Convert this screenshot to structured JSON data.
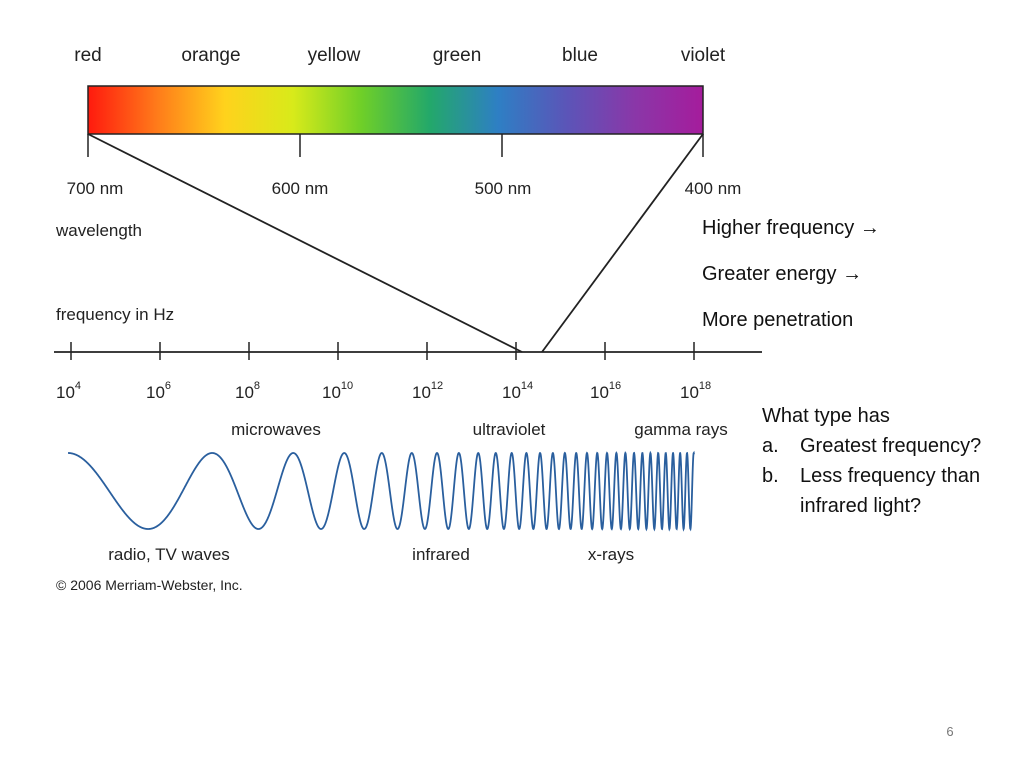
{
  "spectrum": {
    "color_labels": [
      "red",
      "orange",
      "yellow",
      "green",
      "blue",
      "violet"
    ],
    "gradient_colors": [
      "#ff1a0e",
      "#ff7a1a",
      "#ffd21c",
      "#d8ea1a",
      "#6fcf28",
      "#23a86a",
      "#2e7fc4",
      "#5b55b8",
      "#8a37a8",
      "#a51c9c"
    ],
    "nm_labels": [
      "700 nm",
      "600 nm",
      "500 nm",
      "400 nm"
    ],
    "wavelength_label": "wavelength"
  },
  "frequency_axis": {
    "title": "frequency in Hz",
    "tick_base": "10",
    "tick_exponents": [
      "4",
      "6",
      "8",
      "10",
      "12",
      "14",
      "16",
      "18"
    ]
  },
  "bands": {
    "top": [
      "microwaves",
      "ultraviolet",
      "gamma rays"
    ],
    "bottom": [
      "radio, TV waves",
      "infrared",
      "x-rays"
    ]
  },
  "copyright": "© 2006 Merriam-Webster, Inc.",
  "notes": [
    "Higher frequency →",
    "Greater energy →",
    "More penetration"
  ],
  "question": {
    "title": "What type has",
    "items": [
      {
        "marker": "a.",
        "text": "Greatest frequency?"
      },
      {
        "marker": "b.",
        "text": "Less frequency than infrared light?"
      }
    ]
  },
  "slide_number": "6",
  "colors": {
    "line": "#222222",
    "wave": "#2a5f9e"
  }
}
